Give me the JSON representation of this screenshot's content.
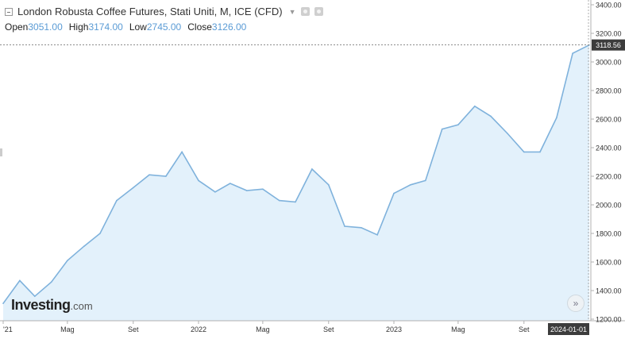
{
  "header": {
    "title": "London Robusta Coffee Futures, Stati Uniti, M, ICE (CFD)",
    "open_label": "Open",
    "open_value": "3051.00",
    "high_label": "High",
    "high_value": "3174.00",
    "low_label": "Low",
    "low_value": "2745.00",
    "close_label": "Close",
    "close_value": "3126.00"
  },
  "logo": {
    "main": "Investing",
    "suffix": ".com"
  },
  "controls": {
    "scroll_glyph": "»"
  },
  "colors": {
    "line": "#7fb2dc",
    "fill": "#e3f1fb",
    "axis": "#b0b0b0",
    "label_bg": "#3c3c3c"
  },
  "icons": [
    "collapse-icon",
    "settings-icon",
    "close-icon",
    "scroll-right-icon"
  ],
  "chart_data": {
    "type": "area",
    "x": [
      "2021-01-01",
      "2021-02-01",
      "2021-03-01",
      "2021-04-01",
      "2021-05-01",
      "2021-06-01",
      "2021-07-01",
      "2021-08-01",
      "2021-09-01",
      "2021-10-01",
      "2021-11-01",
      "2021-12-01",
      "2022-01-01",
      "2022-02-01",
      "2022-03-01",
      "2022-04-01",
      "2022-05-01",
      "2022-06-01",
      "2022-07-01",
      "2022-08-01",
      "2022-09-01",
      "2022-10-01",
      "2022-11-01",
      "2022-12-01",
      "2023-01-01",
      "2023-02-01",
      "2023-03-01",
      "2023-04-01",
      "2023-05-01",
      "2023-06-01",
      "2023-07-01",
      "2023-08-01",
      "2023-09-01",
      "2023-10-01",
      "2023-11-01",
      "2023-12-01",
      "2024-01-01"
    ],
    "values": [
      1310,
      1470,
      1360,
      1460,
      1610,
      1710,
      1800,
      2030,
      2120,
      2210,
      2200,
      2370,
      2170,
      2090,
      2150,
      2100,
      2110,
      2030,
      2020,
      2250,
      2140,
      1850,
      1840,
      1790,
      2080,
      2140,
      2170,
      2530,
      2560,
      2690,
      2620,
      2500,
      2370,
      2370,
      2610,
      3060,
      3118.56
    ],
    "current_value_label": "3118.56",
    "current_date_label": "2024-01-01",
    "x_ticks": [
      {
        "date": "2021-01-01",
        "label": "'21"
      },
      {
        "date": "2021-05-01",
        "label": "Mag"
      },
      {
        "date": "2021-09-01",
        "label": "Set"
      },
      {
        "date": "2022-01-01",
        "label": "2022"
      },
      {
        "date": "2022-05-01",
        "label": "Mag"
      },
      {
        "date": "2022-09-01",
        "label": "Set"
      },
      {
        "date": "2023-01-01",
        "label": "2023"
      },
      {
        "date": "2023-05-01",
        "label": "Mag"
      },
      {
        "date": "2023-09-01",
        "label": "Set"
      }
    ],
    "y_ticks": [
      "1200.00",
      "1400.00",
      "1600.00",
      "1800.00",
      "2000.00",
      "2200.00",
      "2400.00",
      "2600.00",
      "2800.00",
      "3000.00",
      "3200.00",
      "3400.00"
    ],
    "ylim": [
      1200,
      3400
    ],
    "grid": false,
    "legend": "none"
  }
}
